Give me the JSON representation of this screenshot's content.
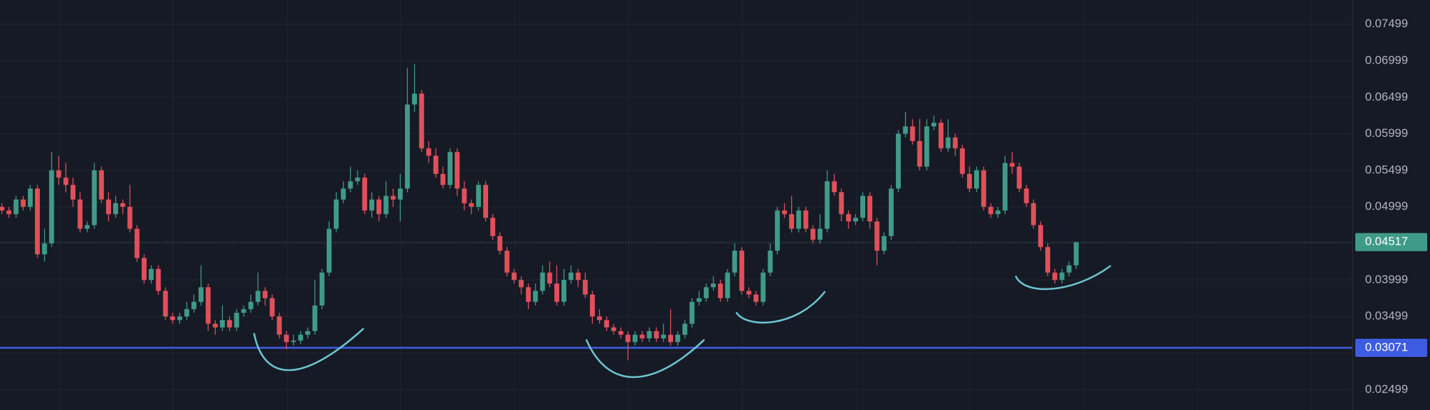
{
  "chart_data": {
    "type": "candlestick",
    "ylim": [
      0.0222,
      0.0783
    ],
    "yticks": [
      0.02499,
      0.02999,
      0.03499,
      0.03999,
      0.04499,
      0.04999,
      0.05499,
      0.05999,
      0.06499,
      0.06999,
      0.07499
    ],
    "grid": true,
    "up_color": "#3f9b87",
    "down_color": "#e0505a",
    "last_price": 0.04517,
    "last_price_color": "#3f9b87",
    "hline": 0.03071,
    "hline_color": "#3d5ce0",
    "candles": [
      [
        0.05,
        0.0505,
        0.049,
        0.0495
      ],
      [
        0.0495,
        0.05,
        0.0485,
        0.049
      ],
      [
        0.049,
        0.0515,
        0.0485,
        0.051
      ],
      [
        0.051,
        0.0515,
        0.0495,
        0.05
      ],
      [
        0.05,
        0.053,
        0.0495,
        0.0525
      ],
      [
        0.0525,
        0.053,
        0.043,
        0.0435
      ],
      [
        0.0435,
        0.047,
        0.0425,
        0.045
      ],
      [
        0.045,
        0.0575,
        0.0445,
        0.055
      ],
      [
        0.055,
        0.057,
        0.053,
        0.054
      ],
      [
        0.054,
        0.056,
        0.052,
        0.053
      ],
      [
        0.053,
        0.054,
        0.05,
        0.051
      ],
      [
        0.051,
        0.052,
        0.0465,
        0.047
      ],
      [
        0.047,
        0.048,
        0.0465,
        0.0475
      ],
      [
        0.0475,
        0.056,
        0.047,
        0.055
      ],
      [
        0.055,
        0.0555,
        0.0505,
        0.051
      ],
      [
        0.051,
        0.052,
        0.048,
        0.049
      ],
      [
        0.049,
        0.0515,
        0.0485,
        0.0505
      ],
      [
        0.0505,
        0.051,
        0.049,
        0.05
      ],
      [
        0.05,
        0.053,
        0.0465,
        0.047
      ],
      [
        0.047,
        0.0475,
        0.0425,
        0.043
      ],
      [
        0.043,
        0.0435,
        0.0395,
        0.04
      ],
      [
        0.04,
        0.042,
        0.0395,
        0.0415
      ],
      [
        0.0415,
        0.042,
        0.038,
        0.0385
      ],
      [
        0.0385,
        0.039,
        0.0345,
        0.035
      ],
      [
        0.035,
        0.0355,
        0.034,
        0.0345
      ],
      [
        0.0345,
        0.0355,
        0.034,
        0.035
      ],
      [
        0.035,
        0.037,
        0.0345,
        0.036
      ],
      [
        0.036,
        0.038,
        0.0355,
        0.037
      ],
      [
        0.037,
        0.042,
        0.0365,
        0.039
      ],
      [
        0.039,
        0.0395,
        0.033,
        0.034
      ],
      [
        0.034,
        0.0345,
        0.0325,
        0.0335
      ],
      [
        0.0335,
        0.0365,
        0.033,
        0.0345
      ],
      [
        0.0345,
        0.035,
        0.033,
        0.0335
      ],
      [
        0.0335,
        0.036,
        0.033,
        0.0355
      ],
      [
        0.0355,
        0.0365,
        0.035,
        0.036
      ],
      [
        0.036,
        0.038,
        0.0355,
        0.037
      ],
      [
        0.037,
        0.041,
        0.0365,
        0.0385
      ],
      [
        0.0385,
        0.039,
        0.0365,
        0.0375
      ],
      [
        0.0375,
        0.038,
        0.0345,
        0.035
      ],
      [
        0.035,
        0.0355,
        0.032,
        0.0325
      ],
      [
        0.0325,
        0.033,
        0.0305,
        0.0315
      ],
      [
        0.0315,
        0.0325,
        0.031,
        0.0317
      ],
      [
        0.0317,
        0.033,
        0.0312,
        0.0325
      ],
      [
        0.0325,
        0.0335,
        0.032,
        0.033
      ],
      [
        0.033,
        0.04,
        0.0325,
        0.0365
      ],
      [
        0.0365,
        0.0415,
        0.036,
        0.041
      ],
      [
        0.041,
        0.048,
        0.0405,
        0.047
      ],
      [
        0.047,
        0.052,
        0.0465,
        0.051
      ],
      [
        0.051,
        0.0535,
        0.0505,
        0.0525
      ],
      [
        0.0525,
        0.0555,
        0.052,
        0.0535
      ],
      [
        0.0535,
        0.055,
        0.053,
        0.054
      ],
      [
        0.054,
        0.0545,
        0.049,
        0.0495
      ],
      [
        0.0495,
        0.052,
        0.0485,
        0.051
      ],
      [
        0.051,
        0.0515,
        0.048,
        0.049
      ],
      [
        0.049,
        0.0535,
        0.0485,
        0.0515
      ],
      [
        0.0515,
        0.0525,
        0.05,
        0.051
      ],
      [
        0.051,
        0.0545,
        0.048,
        0.0525
      ],
      [
        0.0525,
        0.069,
        0.052,
        0.064
      ],
      [
        0.064,
        0.0695,
        0.063,
        0.0655
      ],
      [
        0.0655,
        0.066,
        0.0575,
        0.058
      ],
      [
        0.058,
        0.059,
        0.056,
        0.057
      ],
      [
        0.057,
        0.058,
        0.054,
        0.0545
      ],
      [
        0.0545,
        0.0555,
        0.0525,
        0.053
      ],
      [
        0.053,
        0.058,
        0.0525,
        0.0575
      ],
      [
        0.0575,
        0.058,
        0.0515,
        0.0525
      ],
      [
        0.0525,
        0.0535,
        0.0495,
        0.0505
      ],
      [
        0.0505,
        0.051,
        0.049,
        0.05
      ],
      [
        0.05,
        0.0535,
        0.0495,
        0.053
      ],
      [
        0.053,
        0.0535,
        0.048,
        0.0485
      ],
      [
        0.0485,
        0.049,
        0.0455,
        0.046
      ],
      [
        0.046,
        0.0465,
        0.0435,
        0.044
      ],
      [
        0.044,
        0.0445,
        0.0405,
        0.041
      ],
      [
        0.041,
        0.0415,
        0.0395,
        0.04
      ],
      [
        0.04,
        0.0405,
        0.038,
        0.039
      ],
      [
        0.039,
        0.0395,
        0.036,
        0.037
      ],
      [
        0.037,
        0.0395,
        0.0365,
        0.0385
      ],
      [
        0.0385,
        0.042,
        0.038,
        0.041
      ],
      [
        0.041,
        0.0425,
        0.039,
        0.0395
      ],
      [
        0.0395,
        0.042,
        0.0365,
        0.037
      ],
      [
        0.037,
        0.0415,
        0.0365,
        0.04
      ],
      [
        0.04,
        0.042,
        0.0395,
        0.041
      ],
      [
        0.041,
        0.0415,
        0.039,
        0.04
      ],
      [
        0.04,
        0.041,
        0.0375,
        0.038
      ],
      [
        0.038,
        0.0385,
        0.034,
        0.035
      ],
      [
        0.035,
        0.036,
        0.034,
        0.0345
      ],
      [
        0.0345,
        0.035,
        0.033,
        0.0335
      ],
      [
        0.0335,
        0.034,
        0.0325,
        0.033
      ],
      [
        0.033,
        0.0335,
        0.032,
        0.0325
      ],
      [
        0.0325,
        0.033,
        0.029,
        0.0315
      ],
      [
        0.0315,
        0.033,
        0.031,
        0.0325
      ],
      [
        0.0325,
        0.033,
        0.0315,
        0.032
      ],
      [
        0.032,
        0.0335,
        0.0315,
        0.033
      ],
      [
        0.033,
        0.0335,
        0.0315,
        0.032
      ],
      [
        0.032,
        0.034,
        0.0315,
        0.0325
      ],
      [
        0.0325,
        0.036,
        0.031,
        0.0315
      ],
      [
        0.0315,
        0.033,
        0.031,
        0.0325
      ],
      [
        0.0325,
        0.0345,
        0.032,
        0.034
      ],
      [
        0.034,
        0.0375,
        0.0335,
        0.037
      ],
      [
        0.037,
        0.0385,
        0.0365,
        0.0375
      ],
      [
        0.0375,
        0.0395,
        0.037,
        0.039
      ],
      [
        0.039,
        0.0405,
        0.0385,
        0.0395
      ],
      [
        0.0395,
        0.04,
        0.037,
        0.0375
      ],
      [
        0.0375,
        0.0415,
        0.037,
        0.041
      ],
      [
        0.041,
        0.045,
        0.0405,
        0.044
      ],
      [
        0.044,
        0.0445,
        0.038,
        0.0385
      ],
      [
        0.0385,
        0.039,
        0.0375,
        0.038
      ],
      [
        0.038,
        0.0385,
        0.0365,
        0.037
      ],
      [
        0.037,
        0.0415,
        0.0365,
        0.041
      ],
      [
        0.041,
        0.045,
        0.0405,
        0.044
      ],
      [
        0.044,
        0.05,
        0.0435,
        0.0495
      ],
      [
        0.0495,
        0.0505,
        0.0485,
        0.049
      ],
      [
        0.049,
        0.0515,
        0.0465,
        0.047
      ],
      [
        0.047,
        0.05,
        0.0465,
        0.0495
      ],
      [
        0.0495,
        0.05,
        0.0465,
        0.047
      ],
      [
        0.047,
        0.0475,
        0.045,
        0.0455
      ],
      [
        0.0455,
        0.049,
        0.045,
        0.047
      ],
      [
        0.047,
        0.055,
        0.0465,
        0.0535
      ],
      [
        0.0535,
        0.0545,
        0.0515,
        0.052
      ],
      [
        0.052,
        0.0525,
        0.048,
        0.049
      ],
      [
        0.049,
        0.0495,
        0.047,
        0.048
      ],
      [
        0.048,
        0.049,
        0.0475,
        0.0485
      ],
      [
        0.0485,
        0.052,
        0.048,
        0.0515
      ],
      [
        0.0515,
        0.052,
        0.047,
        0.048
      ],
      [
        0.048,
        0.0485,
        0.042,
        0.044
      ],
      [
        0.044,
        0.0465,
        0.0435,
        0.046
      ],
      [
        0.046,
        0.053,
        0.0455,
        0.0525
      ],
      [
        0.0525,
        0.0605,
        0.052,
        0.06
      ],
      [
        0.06,
        0.063,
        0.0595,
        0.061
      ],
      [
        0.061,
        0.062,
        0.0585,
        0.059
      ],
      [
        0.059,
        0.062,
        0.055,
        0.0555
      ],
      [
        0.0555,
        0.062,
        0.055,
        0.061
      ],
      [
        0.061,
        0.0625,
        0.0605,
        0.0615
      ],
      [
        0.0615,
        0.062,
        0.0575,
        0.058
      ],
      [
        0.058,
        0.062,
        0.0575,
        0.0595
      ],
      [
        0.0595,
        0.06,
        0.057,
        0.058
      ],
      [
        0.058,
        0.0585,
        0.054,
        0.0545
      ],
      [
        0.0545,
        0.0555,
        0.052,
        0.0525
      ],
      [
        0.0525,
        0.0555,
        0.052,
        0.055
      ],
      [
        0.055,
        0.0555,
        0.0495,
        0.05
      ],
      [
        0.05,
        0.0505,
        0.0485,
        0.049
      ],
      [
        0.049,
        0.05,
        0.0485,
        0.0495
      ],
      [
        0.0495,
        0.057,
        0.049,
        0.056
      ],
      [
        0.056,
        0.0575,
        0.0545,
        0.0555
      ],
      [
        0.0555,
        0.056,
        0.052,
        0.0525
      ],
      [
        0.0525,
        0.053,
        0.05,
        0.0505
      ],
      [
        0.0505,
        0.051,
        0.047,
        0.0475
      ],
      [
        0.0475,
        0.048,
        0.044,
        0.0445
      ],
      [
        0.0445,
        0.045,
        0.0405,
        0.041
      ],
      [
        0.041,
        0.0415,
        0.0395,
        0.04
      ],
      [
        0.04,
        0.0415,
        0.0395,
        0.041
      ],
      [
        0.041,
        0.0425,
        0.0405,
        0.042
      ],
      [
        0.042,
        0.04517,
        0.0415,
        0.04517
      ]
    ]
  }
}
